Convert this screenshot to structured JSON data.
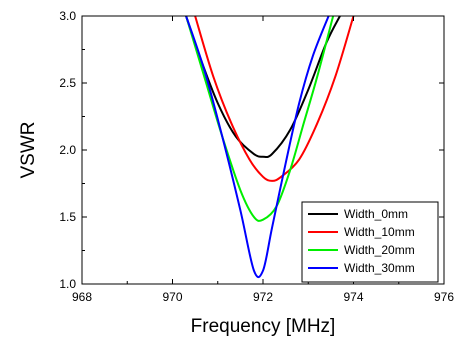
{
  "chart_data": {
    "type": "line",
    "title": "",
    "xlabel": "Frequency [MHz]",
    "ylabel": "VSWR",
    "xlim": [
      968,
      976
    ],
    "ylim": [
      1.0,
      3.0
    ],
    "xticks": [
      968,
      970,
      972,
      974,
      976
    ],
    "xtick_labels": [
      "968",
      "970",
      "972",
      "974",
      "976"
    ],
    "yticks": [
      1.0,
      1.5,
      2.0,
      2.5,
      3.0
    ],
    "ytick_labels": [
      "1.0",
      "1.5",
      "2.0",
      "2.5",
      "3.0"
    ],
    "grid": false,
    "legend_position": "bottom-right",
    "series": [
      {
        "name": "Width_0mm",
        "color": "#000000",
        "x": [
          970.3,
          970.6,
          971.0,
          971.4,
          971.8,
          972.0,
          972.2,
          972.6,
          973.0,
          973.4,
          973.7
        ],
        "y": [
          3.0,
          2.7,
          2.35,
          2.1,
          1.97,
          1.95,
          1.97,
          2.15,
          2.45,
          2.8,
          3.0
        ]
      },
      {
        "name": "Width_10mm",
        "color": "#ff0000",
        "x": [
          970.5,
          970.9,
          971.3,
          971.7,
          972.0,
          972.2,
          972.4,
          972.8,
          973.2,
          973.6,
          974.0
        ],
        "y": [
          3.0,
          2.55,
          2.2,
          1.93,
          1.8,
          1.77,
          1.8,
          1.93,
          2.2,
          2.55,
          3.0
        ]
      },
      {
        "name": "Width_20mm",
        "color": "#00ee00",
        "x": [
          970.3,
          970.7,
          971.1,
          971.5,
          971.8,
          972.0,
          972.3,
          972.6,
          972.9,
          973.2,
          973.55
        ],
        "y": [
          3.0,
          2.55,
          2.1,
          1.7,
          1.5,
          1.48,
          1.58,
          1.85,
          2.2,
          2.55,
          3.0
        ]
      },
      {
        "name": "Width_30mm",
        "color": "#0000ff",
        "x": [
          970.3,
          970.7,
          971.1,
          971.5,
          971.8,
          972.0,
          972.2,
          972.5,
          972.8,
          973.1,
          973.45
        ],
        "y": [
          3.0,
          2.6,
          2.1,
          1.55,
          1.1,
          1.1,
          1.42,
          1.9,
          2.35,
          2.7,
          3.0
        ]
      }
    ]
  }
}
